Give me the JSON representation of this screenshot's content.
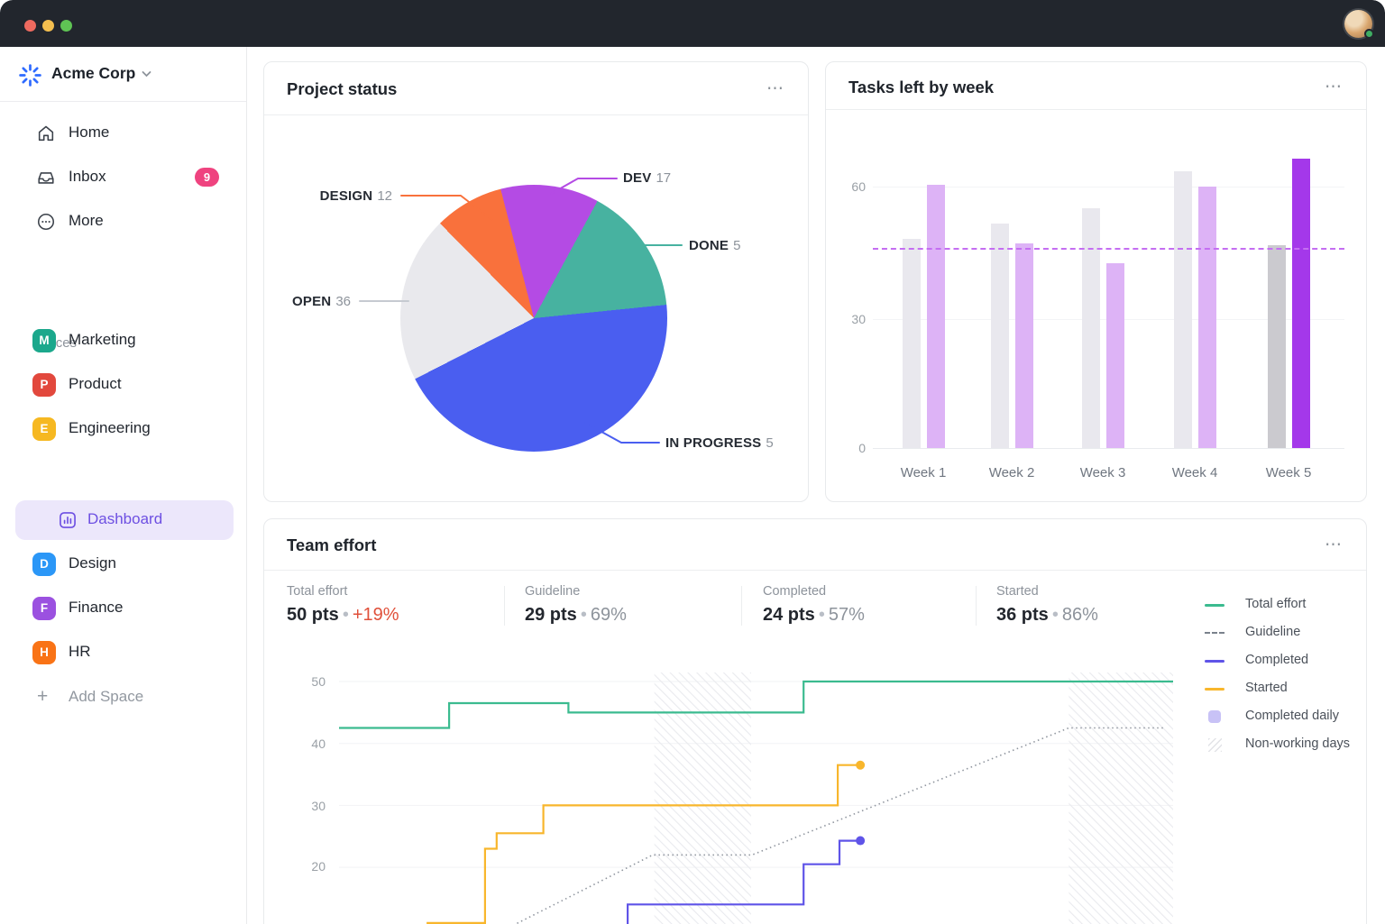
{
  "topbar": {
    "avatar_status": "online"
  },
  "sidebar": {
    "workspace": {
      "name": "Acme Corp"
    },
    "nav": [
      {
        "label": "Home"
      },
      {
        "label": "Inbox",
        "badge": "9"
      },
      {
        "label": "More"
      }
    ],
    "spaces_header": "Spaces",
    "spaces": [
      {
        "initial": "M",
        "label": "Marketing",
        "color": "#1ba88c"
      },
      {
        "initial": "P",
        "label": "Product",
        "color": "#e2483d"
      },
      {
        "initial": "E",
        "label": "Engineering",
        "color": "#f6b821"
      },
      {
        "initial": "D",
        "label": "Design",
        "color": "#2b97f7"
      },
      {
        "initial": "F",
        "label": "Finance",
        "color": "#9b51e0"
      },
      {
        "initial": "H",
        "label": "HR",
        "color": "#f97316"
      }
    ],
    "sub_item": {
      "label": "Dashboard"
    },
    "add_space": "Add Space"
  },
  "cards": {
    "project_status": {
      "title": "Project status",
      "menu": "⋯"
    },
    "tasks_left": {
      "title": "Tasks left by week",
      "menu": "⋯"
    },
    "team_effort": {
      "title": "Team effort",
      "menu": "⋯",
      "stats": [
        {
          "label": "Total effort",
          "value": "50 pts",
          "delta": "+19%",
          "delta_negative": true
        },
        {
          "label": "Guideline",
          "value": "29 pts",
          "delta": "69%",
          "delta_negative": false
        },
        {
          "label": "Completed",
          "value": "24 pts",
          "delta": "57%",
          "delta_negative": false
        },
        {
          "label": "Started",
          "value": "36 pts",
          "delta": "86%",
          "delta_negative": false
        }
      ],
      "legend": [
        {
          "label": "Total effort",
          "swatch": "line",
          "color": "#3bbb8f"
        },
        {
          "label": "Guideline",
          "swatch": "dash",
          "color": "#7a828c"
        },
        {
          "label": "Completed",
          "swatch": "line",
          "color": "#5f54e8"
        },
        {
          "label": "Started",
          "swatch": "line",
          "color": "#f8b62c"
        },
        {
          "label": "Completed daily",
          "swatch": "square",
          "color": "#c8c2f6"
        },
        {
          "label": "Non-working days",
          "swatch": "hatch",
          "color": "#e2e3e7"
        }
      ]
    }
  },
  "chart_data": [
    {
      "type": "pie",
      "title": "Project status",
      "start_deg": -14.4,
      "note": "arc sizes as drawn do not match labeled values",
      "slices": [
        {
          "label": "DEV",
          "value": 17,
          "color": "#b44be4",
          "display_deg": 42.9
        },
        {
          "label": "DONE",
          "value": 5,
          "color": "#47b2a0",
          "display_deg": 55.7
        },
        {
          "label": "IN PROGRESS",
          "value": 5,
          "color": "#4a5ef0",
          "display_deg": 158.7
        },
        {
          "label": "OPEN",
          "value": 36,
          "color": "#e9e9ed",
          "display_deg": 72.4
        },
        {
          "label": "DESIGN",
          "value": 12,
          "color": "#f9713c",
          "display_deg": 30.3
        }
      ]
    },
    {
      "type": "bar",
      "title": "Tasks left by week",
      "categories": [
        "Week 1",
        "Week 2",
        "Week 3",
        "Week 4",
        "Week 5"
      ],
      "series": [
        {
          "name": "remaining-gray",
          "values": [
            48,
            51.5,
            55,
            63.5,
            46.5
          ],
          "color": "#e9e8ee",
          "highlight_color": "#cbcacf"
        },
        {
          "name": "remaining-purple",
          "values": [
            60.5,
            47,
            42.5,
            60,
            66.5
          ],
          "color": "#ddb3f6",
          "highlight_color": "#a438ea"
        }
      ],
      "highlight_index": 4,
      "reference_line": {
        "value": 46,
        "style": "dashed",
        "color": "#c46ef2"
      },
      "ylim": [
        0,
        72
      ],
      "yticks": [
        60,
        30,
        0
      ],
      "ytick_labels": [
        "60",
        "30",
        "0"
      ]
    },
    {
      "type": "line",
      "title": "Team effort",
      "x_unit": "percent_of_timeline",
      "ylabel": "pts",
      "yticks": [
        50,
        40,
        30,
        20
      ],
      "ytick_labels": [
        "50",
        "40",
        "30",
        "20"
      ],
      "non_working_bands": [
        [
          37.8,
          49.4
        ],
        [
          87.5,
          100
        ]
      ],
      "series": [
        {
          "name": "Total effort",
          "color": "#3bbb8f",
          "style": "solid",
          "end_dot": false,
          "points": [
            [
              0,
              42.5
            ],
            [
              13.2,
              42.5
            ],
            [
              13.2,
              46.5
            ],
            [
              27.5,
              46.5
            ],
            [
              27.5,
              45
            ],
            [
              55.7,
              45
            ],
            [
              55.7,
              50
            ],
            [
              100,
              50
            ]
          ]
        },
        {
          "name": "Guideline",
          "color": "#8f959e",
          "style": "dotted",
          "end_dot": false,
          "points": [
            [
              17,
              8
            ],
            [
              37.6,
              22
            ],
            [
              49.5,
              22
            ],
            [
              87.5,
              42.5
            ],
            [
              98.9,
              42.5
            ]
          ]
        },
        {
          "name": "Completed",
          "color": "#5f54e8",
          "style": "solid",
          "end_dot": true,
          "points": [
            [
              34.6,
              7.8
            ],
            [
              34.6,
              14
            ],
            [
              55.7,
              14
            ],
            [
              55.7,
              20.5
            ],
            [
              60,
              20.5
            ],
            [
              60,
              24.3
            ],
            [
              62.5,
              24.3
            ]
          ]
        },
        {
          "name": "Started",
          "color": "#f8b62c",
          "style": "solid",
          "end_dot": true,
          "points": [
            [
              10.5,
              11
            ],
            [
              17.5,
              11
            ],
            [
              17.5,
              23
            ],
            [
              18.9,
              23
            ],
            [
              18.9,
              25.5
            ],
            [
              24.5,
              25.5
            ],
            [
              24.5,
              30
            ],
            [
              59.8,
              30
            ],
            [
              59.8,
              36.5
            ],
            [
              62.5,
              36.5
            ]
          ]
        }
      ]
    }
  ]
}
